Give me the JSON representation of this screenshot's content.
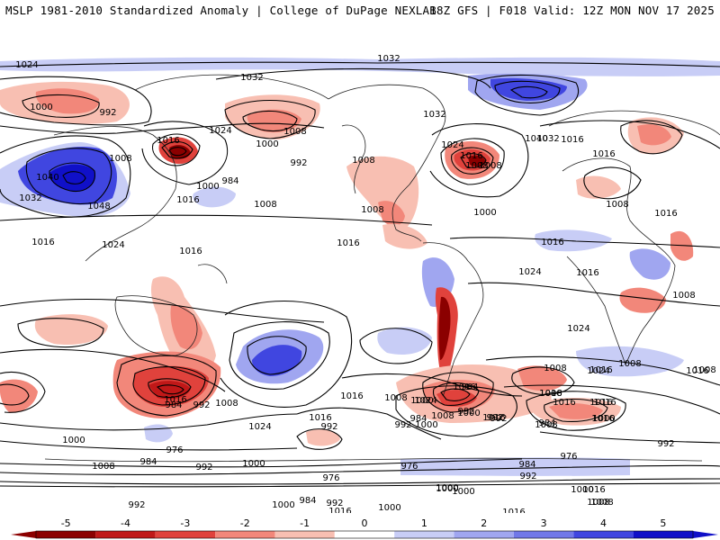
{
  "header": {
    "left": "MSLP 1981-2010 Standardized Anomaly | College of DuPage NEXLAB",
    "right": "18Z GFS | F018 Valid: 12Z MON NOV 17 2025"
  },
  "map": {
    "projection": "global cylindrical",
    "colors": {
      "neg5": "#8b0000",
      "neg4": "#c01818",
      "neg3": "#e0423c",
      "neg2": "#f2877a",
      "neg1": "#f8bfb2",
      "pos1": "#c8cdf6",
      "pos2": "#a0a6f0",
      "pos3": "#7178e8",
      "pos4": "#4046e0",
      "pos5": "#1010c8",
      "isobar": "#000000",
      "land": "#222222"
    },
    "isobar_labels": [
      "1024",
      "1032",
      "1032",
      "1000",
      "992",
      "1016",
      "1024",
      "1008",
      "1008",
      "1000",
      "992",
      "1016",
      "1008",
      "1008",
      "1040",
      "1048",
      "1032",
      "1016",
      "1024",
      "1016",
      "1000",
      "984",
      "1016",
      "1008",
      "1032",
      "1024",
      "1016",
      "1008",
      "1040",
      "1032",
      "1016",
      "1016",
      "1008",
      "1008",
      "1000",
      "1016",
      "1024",
      "1016",
      "1024",
      "1016",
      "1016",
      "1008",
      "1008",
      "1008",
      "1016",
      "1016",
      "1008",
      "1016",
      "1016",
      "1024",
      "1016",
      "1024",
      "1016",
      "1016",
      "992",
      "992",
      "984",
      "1008",
      "1000",
      "984",
      "992",
      "1008",
      "992",
      "984",
      "1016",
      "1024",
      "1000",
      "984",
      "976",
      "1000",
      "1008",
      "984",
      "992",
      "1000",
      "976",
      "992",
      "992",
      "1008",
      "1000",
      "976",
      "976",
      "984",
      "992",
      "1000",
      "1016",
      "1000",
      "992",
      "984",
      "992",
      "1008",
      "1016",
      "1016",
      "1008",
      "1000",
      "992",
      "1016",
      "1016",
      "1008",
      "1000",
      "1000",
      "1008",
      "1000",
      "1000",
      "1016"
    ]
  },
  "colorbar": {
    "ticks": [
      "-5",
      "-4",
      "-3",
      "-2",
      "-1",
      "0",
      "1",
      "2",
      "3",
      "4",
      "5"
    ],
    "values": [
      -5,
      -4,
      -3,
      -2,
      -1,
      0,
      1,
      2,
      3,
      4,
      5
    ],
    "range": [
      -5.5,
      5.5
    ]
  }
}
